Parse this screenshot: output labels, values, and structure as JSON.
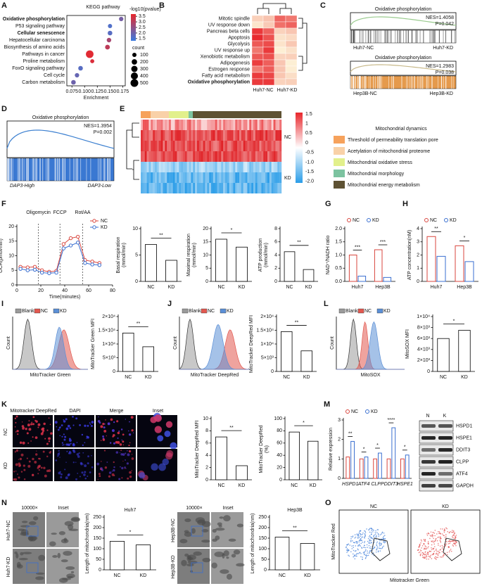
{
  "panel_labels": [
    "A",
    "B",
    "C",
    "D",
    "E",
    "F",
    "G",
    "H",
    "I",
    "J",
    "K",
    "L",
    "M",
    "N",
    "O"
  ],
  "chart_data": [
    {
      "type": "dot",
      "title": "KEGG pathway",
      "xlabel": "Enrichment",
      "categories": [
        "Oxidative phosphorylation",
        "P53 signaling pathway",
        "Cellular senescence",
        "Hepatocellular carcinoma",
        "Biosynthesis of amino acids",
        "Pathways in cancer",
        "Proline metabolism",
        "FoxO signaling pathway",
        "Cell cycle",
        "Carbon metabolism"
      ],
      "values": [
        0.172,
        0.15,
        0.15,
        0.148,
        0.145,
        0.11,
        0.115,
        0.092,
        0.085,
        0.078
      ],
      "sizes": [
        110,
        100,
        130,
        120,
        140,
        480,
        90,
        130,
        110,
        130
      ],
      "pvalue": [
        2.1,
        1.6,
        1.7,
        2.8,
        3.1,
        3.6,
        3.5,
        1.7,
        1.9,
        2.0
      ],
      "xlim": [
        0.065,
        0.18
      ],
      "xticks": [
        0.075,
        {
          "value": 0.1,
          "label": "0.100"
        },
        0.125,
        {
          "value": 0.15,
          "label": "0.150"
        },
        0.175
      ],
      "color_title": "-log10(pvalue)",
      "colorlim": [
        1.3,
        3.7
      ],
      "color_ticks": [
        3.5,
        {
          "value": 3,
          "label": "3.0"
        },
        2.5,
        {
          "value": 2,
          "label": "2.0"
        },
        1.5
      ],
      "colors": [
        "#3b7be0",
        "#e8262b"
      ],
      "size_title": "count",
      "size_ticks": [
        100,
        200,
        300,
        400,
        500
      ]
    },
    {
      "type": "line",
      "ylabel": [
        "OCR(pmol/min)"
      ],
      "xlabel": "Time(minutes)",
      "x": [
        3,
        9,
        15,
        21,
        27,
        33,
        39,
        45,
        51,
        57,
        63,
        69
      ],
      "series": [
        {
          "name": "NC",
          "color": "#d9463e",
          "values": [
            6.2,
            6.0,
            6.2,
            5.0,
            4.5,
            4.8,
            14.0,
            16.0,
            16.5,
            8.5,
            8.0,
            7.5
          ]
        },
        {
          "name": "KD",
          "color": "#3a6fd0",
          "values": [
            5.5,
            5.0,
            5.2,
            4.2,
            4.0,
            4.2,
            12.5,
            13.5,
            14.5,
            7.5,
            7.0,
            6.8
          ]
        }
      ],
      "xlim": [
        0,
        80
      ],
      "ylim": [
        0,
        20
      ],
      "xticks": [
        0,
        20,
        40,
        60,
        80
      ],
      "yticks": [
        0,
        5,
        10,
        15,
        20
      ],
      "annotations": [
        {
          "text": "Oligomycin",
          "x": 18
        },
        {
          "text": "FCCP",
          "x": 36
        },
        {
          "text": "Rot/AA",
          "x": 55
        }
      ]
    },
    {
      "type": "bar",
      "ylabel": [
        "Basal respiration",
        "(mmol/min)"
      ],
      "categories": [
        "NC",
        "KD"
      ],
      "values": [
        7,
        4
      ],
      "color": "#ffffff",
      "ylim": [
        0,
        10
      ],
      "yticks": [
        0,
        5,
        10
      ],
      "significance": "**"
    },
    {
      "type": "bar",
      "ylabel": [
        "Maximal respiration",
        "(mmol/min)"
      ],
      "categories": [
        "NC",
        "KD"
      ],
      "values": [
        16,
        13
      ],
      "color": "#ffffff",
      "ylim": [
        0,
        20
      ],
      "yticks": [
        0,
        5,
        10,
        15,
        20
      ],
      "significance": "*"
    },
    {
      "type": "bar",
      "ylabel": [
        "ATP production",
        "(mmol/min)"
      ],
      "categories": [
        "NC",
        "KD"
      ],
      "values": [
        4.5,
        1.8
      ],
      "color": "#ffffff",
      "ylim": [
        0,
        8
      ],
      "yticks": [
        0,
        2,
        4,
        6,
        8
      ],
      "significance": "**"
    },
    {
      "type": "bar",
      "ylabel": [
        "NAD⁺/NADH ratio"
      ],
      "categories": [
        "Huh7",
        "Hep3B"
      ],
      "series": [
        {
          "name": "NC",
          "color": "#d9463e",
          "values": [
            1.0,
            1.2
          ]
        },
        {
          "name": "KD",
          "color": "#3a6fd0",
          "values": [
            0.2,
            0.15
          ]
        }
      ],
      "ylim": [
        0,
        2
      ],
      "yticks": [
        {
          "value": 0,
          "label": "0.0"
        },
        0.5,
        {
          "value": 1,
          "label": "1.0"
        },
        1.5,
        {
          "value": 2,
          "label": "2.0"
        }
      ],
      "significance": [
        "***",
        "***"
      ]
    },
    {
      "type": "bar",
      "ylabel": [
        "ATP concentration(nM)"
      ],
      "categories": [
        "Huh7",
        "Hep3B"
      ],
      "series": [
        {
          "name": "NC",
          "color": "#d9463e",
          "values": [
            3.4,
            2.7
          ]
        },
        {
          "name": "KD",
          "color": "#3a6fd0",
          "values": [
            1.9,
            1.5
          ]
        }
      ],
      "ylim": [
        0,
        4
      ],
      "yticks": [
        0,
        1,
        2,
        3,
        4
      ],
      "significance": [
        "**",
        "*"
      ]
    },
    {
      "type": "bar",
      "ylabel": [
        "MitoTracker Green MFI"
      ],
      "categories": [
        "NC",
        "KD"
      ],
      "values": [
        14000,
        9000
      ],
      "color": "#ffffff",
      "ylim": [
        0,
        20000
      ],
      "yticks": [
        0,
        {
          "value": 5000,
          "label": "5×10³"
        },
        {
          "value": 10000,
          "label": "1×10⁴"
        },
        {
          "value": 15000,
          "label": "1.5×10⁴"
        },
        {
          "value": 20000,
          "label": "2×10⁴"
        }
      ],
      "significance": "**"
    },
    {
      "type": "bar",
      "ylabel": [
        "MitoTracker DeepRed MFI"
      ],
      "categories": [
        "NC",
        "KD"
      ],
      "values": [
        14500,
        7500
      ],
      "color": "#ffffff",
      "ylim": [
        0,
        20000
      ],
      "yticks": [
        0,
        {
          "value": 5000,
          "label": "5×10³"
        },
        {
          "value": 10000,
          "label": "1×10⁴"
        },
        {
          "value": 15000,
          "label": "1.5×10⁴"
        },
        {
          "value": 20000,
          "label": "2×10⁴"
        }
      ],
      "significance": "**"
    },
    {
      "type": "bar",
      "ylabel": [
        "MitoSOX MFI"
      ],
      "categories": [
        "NC",
        "KD"
      ],
      "values": [
        6000,
        7500
      ],
      "color": "#ffffff",
      "ylim": [
        0,
        10000
      ],
      "yticks": [
        0,
        {
          "value": 2000,
          "label": "2×10³"
        },
        {
          "value": 4000,
          "label": "4×10³"
        },
        {
          "value": 6000,
          "label": "6×10³"
        },
        {
          "value": 8000,
          "label": "8×10³"
        },
        {
          "value": 10000,
          "label": "1×10⁴"
        }
      ],
      "significance": "*"
    },
    {
      "type": "bar",
      "ylabel": [
        "MitoTracker DeepRed MFI"
      ],
      "categories": [
        "NC",
        "KD"
      ],
      "values": [
        7,
        2.3
      ],
      "color": "#ffffff",
      "ylim": [
        0,
        10
      ],
      "yticks": [
        0,
        2,
        4,
        6,
        8,
        10
      ],
      "significance": "**"
    },
    {
      "type": "bar",
      "ylabel": [
        "MitoTracker DeepRed",
        "(%)"
      ],
      "categories": [
        "NC",
        "KD"
      ],
      "values": [
        78,
        63
      ],
      "color": "#ffffff",
      "ylim": [
        0,
        100
      ],
      "yticks": [
        0,
        20,
        40,
        60,
        80,
        100
      ],
      "significance": "*"
    },
    {
      "type": "bar",
      "ylabel": [
        "Relative expression"
      ],
      "categories": [
        "HSPD1",
        "ATF4",
        "CLPP",
        "DDIT3",
        "HSPE1"
      ],
      "series": [
        {
          "name": "NC",
          "color": "#d9463e",
          "values": [
            1.1,
            1.0,
            1.0,
            1.0,
            1.0
          ]
        },
        {
          "name": "KD",
          "color": "#3a6fd0",
          "values": [
            1.9,
            1.1,
            1.3,
            2.6,
            1.2
          ]
        }
      ],
      "ylim": [
        0,
        3
      ],
      "yticks": [
        0,
        1,
        2,
        3
      ],
      "significance": [
        "**",
        "*",
        "*",
        "****",
        "*"
      ]
    },
    {
      "type": "bar",
      "title": "Huh7",
      "ylabel": [
        "Length of mitochondria(nm)"
      ],
      "categories": [
        "NC",
        "KD"
      ],
      "values": [
        135,
        118
      ],
      "color": "#ffffff",
      "ylim": [
        0,
        250
      ],
      "yticks": [
        0,
        50,
        100,
        150,
        200,
        250
      ],
      "significance": "*"
    },
    {
      "type": "bar",
      "title": "Hep3B",
      "ylabel": [
        "Length of mitochondria(nm)"
      ],
      "categories": [
        "NC",
        "KD"
      ],
      "values": [
        155,
        125
      ],
      "color": "#ffffff",
      "ylim": [
        0,
        250
      ],
      "yticks": [
        0,
        50,
        100,
        150,
        200,
        250
      ],
      "significance": "**"
    }
  ],
  "panels": {
    "B": {
      "rows": [
        "Mitotic spindle",
        "UV response down",
        "Pancreas beta cells",
        "Apoptosis",
        "Glycolysis",
        "UV response up",
        "Xenobiotic metabolism",
        "Adipogenesis",
        "Estrogen response",
        "Fatty acid metabolism",
        "Oxidative phosphorylation"
      ],
      "columns": [
        "Huh7-NC",
        "Huh7-KD"
      ]
    },
    "C": [
      {
        "title": "Oxidative phosphorylation",
        "nes": "NES=1.4058",
        "p": "P=0.042",
        "left": "Huh7-NC",
        "right": "Huh7-KD"
      },
      {
        "title": "Oxidative phosphorylation",
        "nes": "NES=1.2983",
        "p": "P=0.038",
        "left": "Hep3B-NC",
        "right": "Hep3B-KD"
      }
    ],
    "D": {
      "title": "Oxidative phosphorylation",
      "nes": "NES=1.3954",
      "p": "P=0.002",
      "left": "DAP3-High",
      "right": "DAP3-Low"
    },
    "E": {
      "groups": [
        "NC",
        "KD"
      ],
      "scale": [
        "1.5",
        "1",
        "0.5",
        "0",
        "-0.5",
        "-1.0",
        "-1.5",
        "-2.0"
      ],
      "legend_title": "Mitochondrial dynamics",
      "legend": [
        "Threshold of permeability translation pore",
        "Acetylation of mitochondrial proteome",
        "Mitochondrial oxidative stress",
        "Mitochondrial morphology",
        "Mitochondrial energy metabolism"
      ],
      "colors": [
        "#f6a25c",
        "#f9d1a8",
        "#e2f08c",
        "#7cc3a0",
        "#5e5233"
      ]
    },
    "I": {
      "legend": [
        "Blank",
        "NC",
        "KD"
      ],
      "colors": [
        "#9a9a9a",
        "#e2584f",
        "#5b8fd6"
      ],
      "ylabel": "Count",
      "xlabel": "MitoTracker Green"
    },
    "J": {
      "legend": [
        "Blank",
        "NC",
        "KD"
      ],
      "colors": [
        "#9a9a9a",
        "#e2584f",
        "#5b8fd6"
      ],
      "ylabel": "Count",
      "xlabel": "MitoTracker DeepRed"
    },
    "L": {
      "legend": [
        "Blank",
        "NC",
        "KD"
      ],
      "colors": [
        "#9a9a9a",
        "#e2584f",
        "#5b8fd6"
      ],
      "ylabel": "Count",
      "xlabel": "MitoSOX"
    },
    "K": {
      "columns": [
        "Mitotracker DeepRed",
        "DAPI",
        "Merge",
        "Inset"
      ],
      "rows": [
        "NC",
        "KD"
      ]
    },
    "M": {
      "columns": [
        "N",
        "K"
      ],
      "proteins": [
        "HSPD1",
        "HSPE1",
        "DDIT3",
        "CLPP",
        "ATF4",
        "GAPDH"
      ]
    },
    "N": [
      {
        "columns": [
          "10000×",
          "Inset"
        ],
        "rows": [
          "Huh7-NC",
          "Huh7-KD"
        ]
      },
      {
        "columns": [
          "10000×",
          "Inset"
        ],
        "rows": [
          "Hep3B-NC",
          "Hep3B-KD"
        ]
      }
    ],
    "O": {
      "columns": [
        "NC",
        "KD"
      ],
      "ylabel": "MitoTracker Red",
      "xlabel": "Mitotracker Green"
    }
  }
}
